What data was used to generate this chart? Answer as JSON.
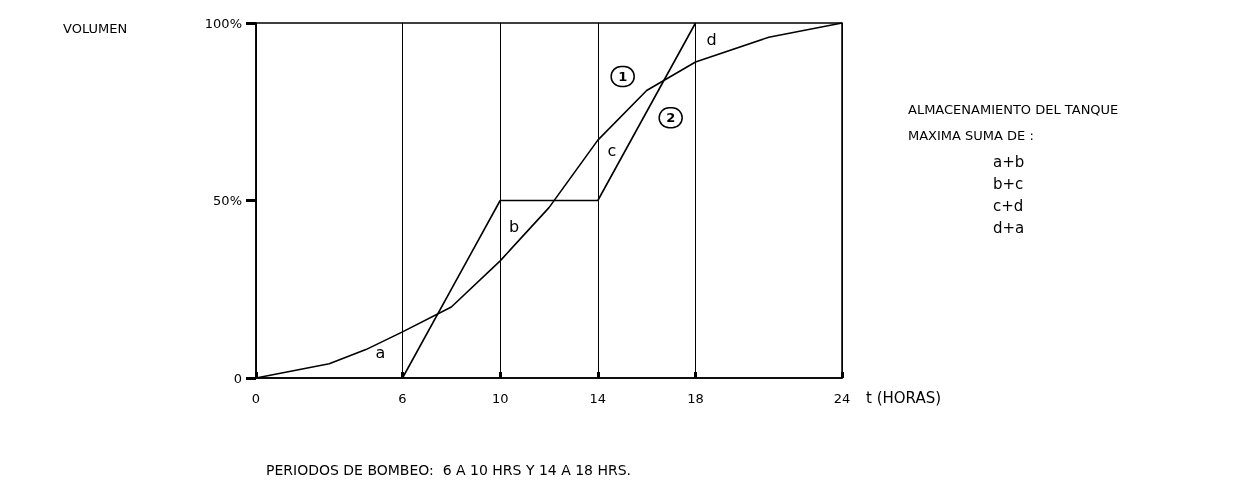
{
  "chart_data": {
    "type": "line",
    "xlabel": "t (HORAS)",
    "xlim": [
      0,
      24
    ],
    "xticks": [
      0,
      6,
      10,
      14,
      18,
      24
    ],
    "ylim": [
      0,
      100
    ],
    "yticks": [
      {
        "value": 0,
        "label": "0"
      },
      {
        "value": 50,
        "label": "50%"
      },
      {
        "value": 100,
        "label": "100%"
      }
    ],
    "grid": "x",
    "marker": "none",
    "line_style": "solid",
    "legend": false,
    "series": [
      {
        "name": "1",
        "color": "#000000",
        "x": [
          0,
          3,
          4.5,
          6,
          8,
          10,
          12,
          14,
          16,
          18,
          21,
          24
        ],
        "values": [
          0,
          4,
          8,
          13,
          20,
          33,
          48,
          67,
          81,
          89,
          96,
          100
        ]
      },
      {
        "name": "2",
        "color": "#000000",
        "x": [
          6,
          10,
          14,
          18
        ],
        "values": [
          0,
          50,
          50,
          100
        ]
      }
    ],
    "annotations": [
      {
        "text": "a",
        "x": 6,
        "y": 0
      },
      {
        "text": "b",
        "x": 10,
        "y": 50
      },
      {
        "text": "c",
        "x": 14,
        "y": 67
      },
      {
        "text": "d",
        "x": 18,
        "y": 100
      },
      "VOLUMEN",
      "ALMACENAMIENTO DEL TANQUE\nMAXIMA SUMA DE :",
      "a+b\nb+c\nc+d\nd+a",
      "PERIODOS DE BOMBEO:  6 A 10 HRS Y 14 A 18 HRS."
    ]
  }
}
